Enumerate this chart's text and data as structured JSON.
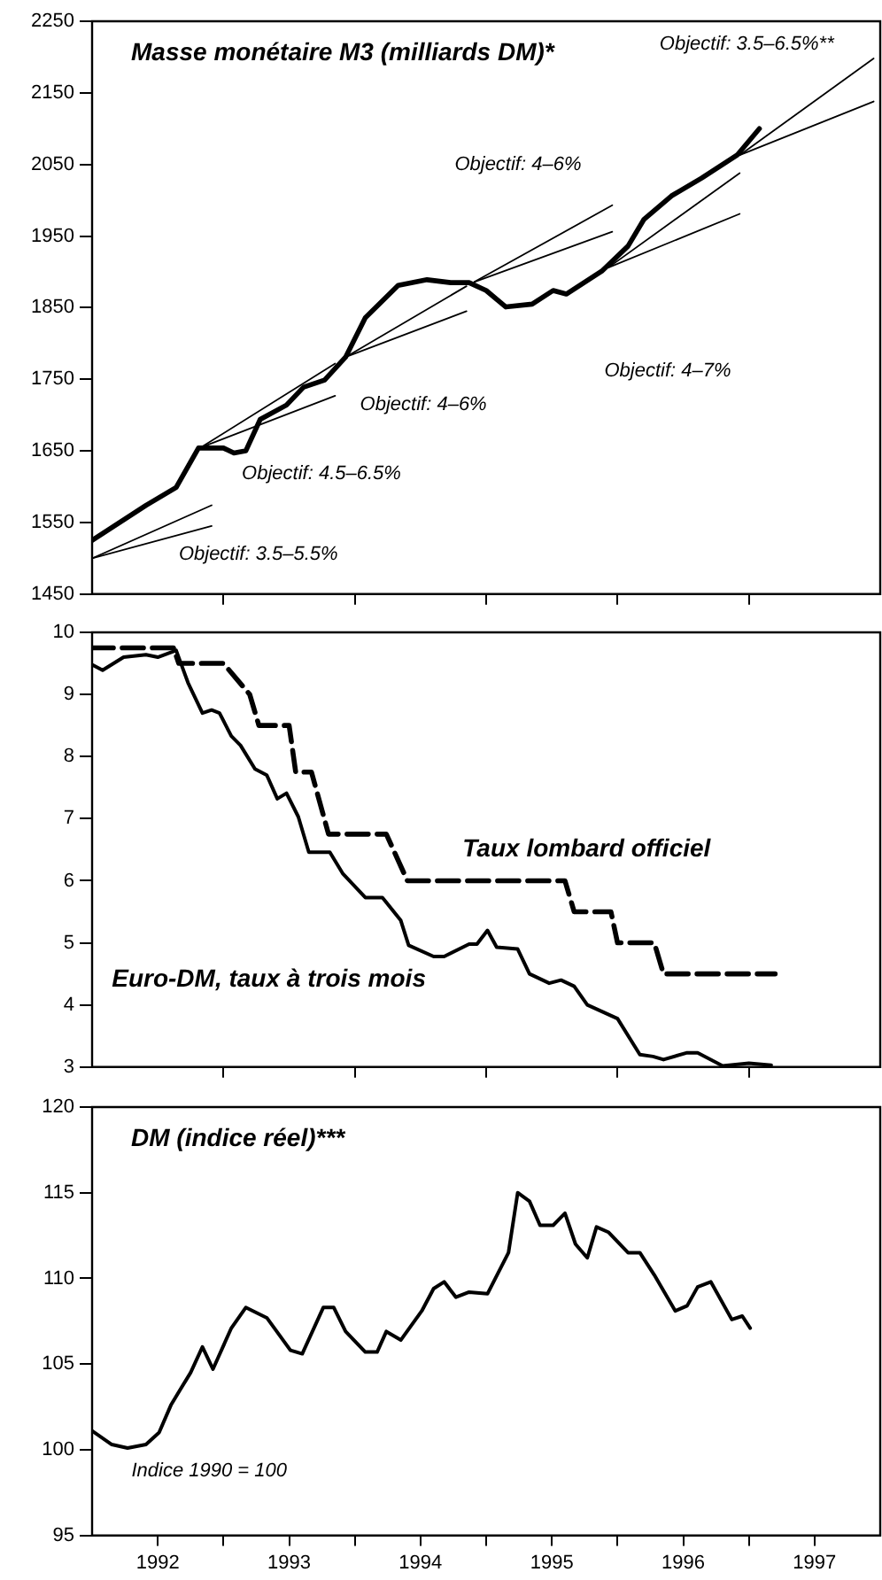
{
  "chart_data": [
    {
      "type": "line",
      "title": "Masse monétaire M3 (milliards DM)*",
      "marker": "none",
      "tick_labels": "y",
      "legend": false,
      "xlim": [
        1992,
        1998
      ],
      "xticks": [
        {
          "value": 1993,
          "label": null
        },
        {
          "value": 1994,
          "label": null
        },
        {
          "value": 1995,
          "label": null
        },
        {
          "value": 1996,
          "label": null
        },
        {
          "value": 1997,
          "label": null
        }
      ],
      "ylim": [
        1450,
        2250
      ],
      "yticks": [
        1450,
        1550,
        1650,
        1750,
        1850,
        1950,
        2050,
        2150,
        2250
      ],
      "series": [
        {
          "color": "#000000",
          "x": [
            1992.0,
            1992.41,
            1992.64,
            1992.81,
            1993.0,
            1993.08,
            1993.17,
            1993.28,
            1993.48,
            1993.61,
            1993.77,
            1993.93,
            1994.08,
            1994.33,
            1994.55,
            1994.73,
            1994.87,
            1995.0,
            1995.15,
            1995.35,
            1995.51,
            1995.61,
            1995.88,
            1996.08,
            1996.2,
            1996.41,
            1996.64,
            1996.91,
            1997.08
          ],
          "values": [
            1525,
            1574,
            1599,
            1654,
            1654,
            1647,
            1650,
            1694,
            1714,
            1739,
            1749,
            1781,
            1836,
            1881,
            1889,
            1885,
            1885,
            1874,
            1851,
            1855,
            1874,
            1869,
            1901,
            1936,
            1973,
            2006,
            2031,
            2063,
            2100
          ]
        },
        {
          "color": "#000000",
          "x": [
            1992.0,
            1992.91
          ],
          "values": [
            1500,
            1574
          ]
        },
        {
          "color": "#000000",
          "x": [
            1992.0,
            1992.91
          ],
          "values": [
            1500,
            1545
          ]
        },
        {
          "color": "#000000",
          "x": [
            1992.83,
            1993.85
          ],
          "values": [
            1655,
            1772
          ]
        },
        {
          "color": "#000000",
          "x": [
            1992.83,
            1993.85
          ],
          "values": [
            1655,
            1727
          ]
        },
        {
          "color": "#000000",
          "x": [
            1993.93,
            1994.85
          ],
          "values": [
            1781,
            1880
          ]
        },
        {
          "color": "#000000",
          "x": [
            1993.93,
            1994.85
          ],
          "values": [
            1781,
            1845
          ]
        },
        {
          "color": "#000000",
          "x": [
            1994.91,
            1995.96
          ],
          "values": [
            1886,
            1993
          ]
        },
        {
          "color": "#000000",
          "x": [
            1994.91,
            1995.96
          ],
          "values": [
            1886,
            1956
          ]
        },
        {
          "color": "#000000",
          "x": [
            1995.93,
            1996.93
          ],
          "values": [
            1906,
            2038
          ]
        },
        {
          "color": "#000000",
          "x": [
            1995.93,
            1996.93
          ],
          "values": [
            1906,
            1981
          ]
        },
        {
          "color": "#000000",
          "x": [
            1996.93,
            1997.95
          ],
          "values": [
            2063,
            2198
          ]
        },
        {
          "color": "#000000",
          "x": [
            1996.93,
            1997.95
          ],
          "values": [
            2063,
            2138
          ]
        }
      ],
      "annotations": [
        "Objectif: 3.5–5.5%",
        "Objectif: 4.5–6.5%",
        "Objectif: 4–6%",
        "Objectif: 4–6%",
        "Objectif: 4–7%",
        "Objectif: 3.5–6.5%**"
      ]
    },
    {
      "type": "line",
      "marker": "none",
      "tick_labels": "y",
      "legend": false,
      "xlim": [
        1992,
        1998
      ],
      "xticks": [
        {
          "value": 1993,
          "label": null
        },
        {
          "value": 1994,
          "label": null
        },
        {
          "value": 1995,
          "label": null
        },
        {
          "value": 1996,
          "label": null
        },
        {
          "value": 1997,
          "label": null
        }
      ],
      "ylim": [
        3,
        10
      ],
      "yticks": [
        3,
        4,
        5,
        6,
        7,
        8,
        9,
        10
      ],
      "series": [
        {
          "name": "Euro-DM, taux à trois mois",
          "color": "#000000",
          "x": [
            1992.0,
            1992.08,
            1992.24,
            1992.41,
            1992.5,
            1992.64,
            1992.73,
            1992.84,
            1992.91,
            1992.97,
            1993.06,
            1993.13,
            1993.24,
            1993.33,
            1993.41,
            1993.48,
            1993.57,
            1993.65,
            1993.81,
            1993.91,
            1994.08,
            1994.21,
            1994.35,
            1994.41,
            1994.6,
            1994.68,
            1994.87,
            1994.93,
            1995.01,
            1995.08,
            1995.24,
            1995.33,
            1995.48,
            1995.57,
            1995.67,
            1995.77,
            1996.0,
            1996.17,
            1996.27,
            1996.35,
            1996.53,
            1996.61,
            1996.8,
            1997.0,
            1997.17
          ],
          "values": [
            9.48,
            9.39,
            9.6,
            9.64,
            9.6,
            9.71,
            9.19,
            8.7,
            8.75,
            8.7,
            8.33,
            8.18,
            7.8,
            7.7,
            7.32,
            7.41,
            7.03,
            6.46,
            6.46,
            6.11,
            5.73,
            5.73,
            5.36,
            4.96,
            4.78,
            4.78,
            4.98,
            4.98,
            5.2,
            4.93,
            4.9,
            4.5,
            4.35,
            4.4,
            4.3,
            4.0,
            3.78,
            3.2,
            3.17,
            3.12,
            3.23,
            3.23,
            3.02,
            3.06,
            3.03
          ]
        },
        {
          "name": "Taux lombard officiel",
          "color": "#000000",
          "line_style": "dashed",
          "x": [
            1992.0,
            1992.62,
            1992.66,
            1993.0,
            1993.2,
            1993.27,
            1993.5,
            1993.55,
            1993.67,
            1993.8,
            1994.24,
            1994.4,
            1995.6,
            1995.67,
            1995.95,
            1996.0,
            1996.28,
            1996.35,
            1997.2
          ],
          "values": [
            9.75,
            9.75,
            9.5,
            9.5,
            9.0,
            8.5,
            8.5,
            7.75,
            7.75,
            6.75,
            6.75,
            6.0,
            6.0,
            5.5,
            5.5,
            5.0,
            5.0,
            4.5,
            4.5
          ]
        }
      ]
    },
    {
      "type": "line",
      "title": "DM (indice réel)***",
      "marker": "none",
      "legend": false,
      "xlim": [
        1992,
        1998
      ],
      "xticks": [
        {
          "value": 1992.5,
          "label": "1992"
        },
        {
          "value": 1993,
          "label": null
        },
        {
          "value": 1993.5,
          "label": "1993"
        },
        {
          "value": 1994,
          "label": null
        },
        {
          "value": 1994.5,
          "label": "1994"
        },
        {
          "value": 1995,
          "label": null
        },
        {
          "value": 1995.5,
          "label": "1995"
        },
        {
          "value": 1996,
          "label": null
        },
        {
          "value": 1996.5,
          "label": "1996"
        },
        {
          "value": 1997,
          "label": null
        },
        {
          "value": 1997.5,
          "label": "1997"
        }
      ],
      "ylim": [
        95,
        120
      ],
      "yticks": [
        95,
        100,
        105,
        110,
        115,
        120
      ],
      "series": [
        {
          "color": "#000000",
          "x": [
            1992.0,
            1992.15,
            1992.27,
            1992.41,
            1992.51,
            1992.6,
            1992.67,
            1992.75,
            1992.84,
            1992.92,
            1993.06,
            1993.17,
            1993.33,
            1993.51,
            1993.6,
            1993.76,
            1993.84,
            1993.93,
            1994.08,
            1994.17,
            1994.24,
            1994.35,
            1994.51,
            1994.6,
            1994.68,
            1994.77,
            1994.87,
            1995.01,
            1995.17,
            1995.24,
            1995.33,
            1995.41,
            1995.51,
            1995.6,
            1995.68,
            1995.77,
            1995.84,
            1995.93,
            1996.08,
            1996.17,
            1996.28,
            1996.44,
            1996.53,
            1996.61,
            1996.71,
            1996.87,
            1996.95,
            1997.01
          ],
          "values": [
            101.1,
            100.3,
            100.1,
            100.3,
            101.0,
            102.6,
            103.5,
            104.5,
            106.0,
            104.7,
            107.1,
            108.3,
            107.7,
            105.8,
            105.6,
            108.3,
            108.3,
            106.9,
            105.7,
            105.7,
            106.9,
            106.4,
            108.1,
            109.4,
            109.8,
            108.9,
            109.2,
            109.1,
            111.5,
            115.0,
            114.5,
            113.1,
            113.1,
            113.8,
            112.0,
            111.2,
            113.0,
            112.7,
            111.5,
            111.5,
            110.2,
            108.1,
            108.4,
            109.5,
            109.8,
            107.6,
            107.8,
            107.1
          ]
        }
      ],
      "annotations": [
        "Indice 1990 = 100"
      ]
    }
  ]
}
